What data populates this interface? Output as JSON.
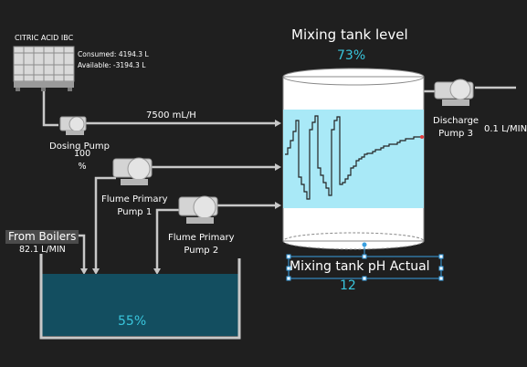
{
  "ibc": {
    "title": "CITRIC ACID IBC",
    "consumed": "Consumed: 4194.3 L",
    "available": "Available: -3194.3 L"
  },
  "dosing_pump": {
    "label": "Dosing Pump",
    "speed": "100",
    "unit": "%",
    "flow": "7500 mL/H"
  },
  "flume_pump_1": {
    "label_line1": "Flume Primary",
    "label_line2": "Pump 1"
  },
  "flume_pump_2": {
    "label_line1": "Flume Primary",
    "label_line2": "Pump 2"
  },
  "boilers": {
    "label": "From Boilers",
    "flow": "82.1 L/MIN"
  },
  "discharge_pump": {
    "label_line1": "Discharge",
    "label_line2": "Pump 3",
    "flow": "0.1 L/MIN"
  },
  "mixing_tank": {
    "title": "Mixing tank level",
    "level_text": "73%",
    "level": 0.73,
    "ph_title": "Mixing tank pH Actual",
    "ph_value": "12"
  },
  "collection_tank": {
    "level_text": "55%",
    "level": 0.55
  },
  "colors": {
    "background": "#1f1f1f",
    "accent": "#39c6dd",
    "pipe": "#c8c8c8",
    "trend_bg": "#a9e9f7",
    "collection_fill": "#134e60",
    "selection": "#3a9fe0"
  },
  "trend": {
    "x": [
      0,
      1,
      2,
      3,
      4,
      5,
      6,
      7,
      8,
      9,
      10,
      11,
      12,
      13,
      14,
      15,
      16,
      17,
      18,
      19,
      20,
      21,
      22,
      23,
      24,
      25,
      26,
      27,
      28,
      29,
      30,
      31,
      32,
      33,
      34,
      35,
      36,
      37,
      38,
      39,
      40,
      41,
      42,
      43,
      44,
      45,
      46,
      47,
      48,
      49,
      50
    ],
    "y": [
      0.55,
      0.62,
      0.7,
      0.8,
      0.92,
      0.3,
      0.22,
      0.14,
      0.06,
      0.82,
      0.9,
      0.97,
      0.4,
      0.32,
      0.24,
      0.18,
      0.1,
      0.82,
      0.92,
      0.96,
      0.22,
      0.24,
      0.28,
      0.32,
      0.4,
      0.42,
      0.48,
      0.5,
      0.52,
      0.55,
      0.56,
      0.56,
      0.58,
      0.6,
      0.6,
      0.62,
      0.64,
      0.64,
      0.66,
      0.66,
      0.66,
      0.68,
      0.7,
      0.7,
      0.72,
      0.72,
      0.72,
      0.74,
      0.74,
      0.74,
      0.74
    ]
  }
}
